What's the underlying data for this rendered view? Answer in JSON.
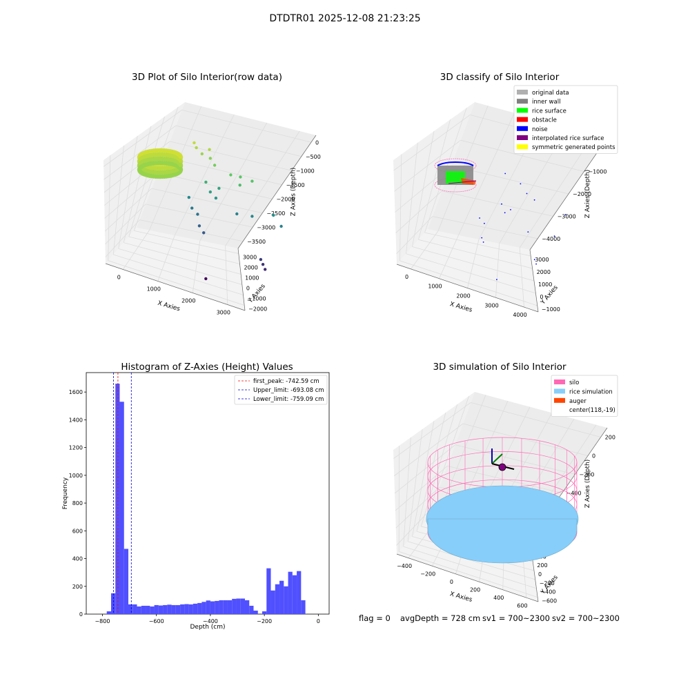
{
  "suptitle": "DTDTR01 2025-12-08 21:23:25",
  "footer": {
    "flag": "flag = 0",
    "avg_depth": "avgDepth = 728 cm",
    "sv1": "sv1 = 700~2300",
    "sv2": "sv2 = 700~2300"
  },
  "colors": {
    "histogram_bar": "#5050ff",
    "first_peak_line": "#ff0000",
    "limit_lines": "#0000cc",
    "silo_wire": "#ff69b4",
    "rice_simulation": "#87cefa",
    "auger": "#ff4500",
    "center_marker": "#800080",
    "original_data": "#b0b0b0",
    "inner_wall": "#808080",
    "rice_surface": "#00ff00",
    "obstacle": "#ff0000",
    "noise": "#0000ff",
    "interpolated_rice_surface": "#800080",
    "symmetric_generated_points": "#ffff00",
    "grid": "#dcdcdc",
    "pane": "#f2f2f2"
  },
  "chart_data": [
    {
      "type": "scatter",
      "projection": "3d",
      "title": "3D Plot of Silo Interior(row data)",
      "xlabel": "X Axies",
      "ylabel": "Y Axies",
      "zlabel": "Z Axies (Depth)",
      "x_ticks": [
        "0",
        "1000",
        "2000",
        "3000"
      ],
      "y_ticks": [
        "−2000",
        "−1000",
        "0",
        "1000",
        "2000",
        "3000"
      ],
      "z_ticks": [
        "0",
        "−500",
        "−1000",
        "−1500",
        "−2000",
        "−2500",
        "−3000",
        "−3500"
      ],
      "colormap": "viridis (by depth)",
      "points": [
        {
          "x": 200,
          "y": 2400,
          "z": -800
        },
        {
          "x": 300,
          "y": 2300,
          "z": -900
        },
        {
          "x": 500,
          "y": 2200,
          "z": -1000
        },
        {
          "x": 600,
          "y": 2500,
          "z": -900
        },
        {
          "x": 700,
          "y": 2300,
          "z": -1100
        },
        {
          "x": 900,
          "y": 2100,
          "z": -1200
        },
        {
          "x": 1400,
          "y": 2000,
          "z": -1300
        },
        {
          "x": 1600,
          "y": 2200,
          "z": -1350
        },
        {
          "x": 1700,
          "y": 1900,
          "z": -1500
        },
        {
          "x": 1900,
          "y": 2300,
          "z": -1400
        },
        {
          "x": 800,
          "y": 1700,
          "z": -1700
        },
        {
          "x": 1000,
          "y": 1500,
          "z": -1900
        },
        {
          "x": 1200,
          "y": 1400,
          "z": -2000
        },
        {
          "x": 1100,
          "y": 1900,
          "z": -1850
        },
        {
          "x": 500,
          "y": 1200,
          "z": -2200
        },
        {
          "x": 700,
          "y": 900,
          "z": -2400
        },
        {
          "x": 900,
          "y": 800,
          "z": -2500
        },
        {
          "x": 1800,
          "y": 1400,
          "z": -2300
        },
        {
          "x": 2200,
          "y": 1500,
          "z": -2250
        },
        {
          "x": 2700,
          "y": 1800,
          "z": -2100
        },
        {
          "x": 3000,
          "y": 1600,
          "z": -2300
        },
        {
          "x": 1100,
          "y": 400,
          "z": -2700
        },
        {
          "x": 1300,
          "y": 200,
          "z": -2800
        },
        {
          "x": 2900,
          "y": 300,
          "z": -3100
        },
        {
          "x": 3000,
          "y": 200,
          "z": -3200
        },
        {
          "x": 3100,
          "y": 100,
          "z": -3300
        },
        {
          "x": 2000,
          "y": -1500,
          "z": -3600
        }
      ],
      "ring_points": {
        "x_center": 300,
        "y_center": 2500,
        "z_top": -500,
        "z_bottom": -1000,
        "radius": 500
      }
    },
    {
      "type": "scatter",
      "projection": "3d",
      "title": "3D classify of Silo Interior",
      "xlabel": "X Axies",
      "ylabel": "Y Axies",
      "zlabel": "Z Axies (Depth)",
      "x_ticks": [
        "0",
        "1000",
        "2000",
        "3000",
        "4000"
      ],
      "y_ticks": [
        "−1000",
        "0",
        "1000",
        "2000",
        "3000"
      ],
      "z_ticks": [
        "0",
        "−1000",
        "−2000",
        "−3000",
        "−4000"
      ],
      "legend_position": "top-right",
      "legend": [
        {
          "label": "original data",
          "color": "#b0b0b0"
        },
        {
          "label": "inner wall",
          "color": "#808080"
        },
        {
          "label": "rice surface",
          "color": "#00ff00"
        },
        {
          "label": "obstacle",
          "color": "#ff0000"
        },
        {
          "label": "noise",
          "color": "#0000ff"
        },
        {
          "label": "interpolated rice surface",
          "color": "#800080"
        },
        {
          "label": "symmetric generated points",
          "color": "#ffff00"
        }
      ],
      "noise_points": [
        {
          "x": 1500,
          "y": 2000,
          "z": -900
        },
        {
          "x": 2100,
          "y": 1800,
          "z": -1000
        },
        {
          "x": 2400,
          "y": 1600,
          "z": -1200
        },
        {
          "x": 2700,
          "y": 1500,
          "z": -1300
        },
        {
          "x": 3600,
          "y": 1800,
          "z": -1600
        },
        {
          "x": 1700,
          "y": 1300,
          "z": -1800
        },
        {
          "x": 1900,
          "y": 1100,
          "z": -2000
        },
        {
          "x": 2000,
          "y": 1300,
          "z": -1900
        },
        {
          "x": 3500,
          "y": 1200,
          "z": -2300
        },
        {
          "x": 2900,
          "y": 600,
          "z": -2200
        },
        {
          "x": 1200,
          "y": 800,
          "z": -2400
        },
        {
          "x": 1400,
          "y": 700,
          "z": -2500
        },
        {
          "x": 3300,
          "y": 200,
          "z": -3000
        },
        {
          "x": 3400,
          "y": 100,
          "z": -3100
        },
        {
          "x": 1500,
          "y": 300,
          "z": -2900
        },
        {
          "x": 1600,
          "y": 200,
          "z": -3000
        },
        {
          "x": 2500,
          "y": -800,
          "z": -3800
        }
      ]
    },
    {
      "type": "bar",
      "title": "Histogram of Z-Axies (Height) Values",
      "xlabel": "Depth (cm)",
      "ylabel": "Frequency",
      "xlim": [
        -860,
        40
      ],
      "ylim": [
        0,
        1740
      ],
      "x_ticks": [
        -800,
        -600,
        -400,
        -200,
        0
      ],
      "x_tick_labels": [
        "−800",
        "−600",
        "−400",
        "−200",
        "0"
      ],
      "y_ticks": [
        0,
        200,
        400,
        600,
        800,
        1000,
        1200,
        1400,
        1600
      ],
      "bin_width": 16,
      "bins_start": [
        -784,
        -768,
        -752,
        -736,
        -720,
        -704,
        -688,
        -672,
        -656,
        -640,
        -624,
        -608,
        -592,
        -576,
        -560,
        -544,
        -528,
        -512,
        -496,
        -480,
        -464,
        -448,
        -432,
        -416,
        -400,
        -384,
        -368,
        -352,
        -336,
        -320,
        -304,
        -288,
        -272,
        -256,
        -240,
        -224,
        -208,
        -192,
        -176,
        -160,
        -144,
        -128,
        -112,
        -96,
        -80,
        -64,
        -48,
        -32,
        -16
      ],
      "values": [
        20,
        150,
        1660,
        1530,
        470,
        70,
        70,
        55,
        60,
        60,
        55,
        65,
        62,
        65,
        68,
        65,
        65,
        70,
        72,
        70,
        75,
        80,
        88,
        98,
        92,
        95,
        100,
        100,
        100,
        110,
        112,
        112,
        100,
        60,
        25,
        0,
        20,
        330,
        170,
        215,
        240,
        200,
        305,
        280,
        310,
        100,
        0,
        0,
        0
      ],
      "vlines": [
        {
          "name": "first_peak: -742.59 cm",
          "x": -742.59,
          "color": "#ff0000"
        },
        {
          "name": "Upper_limit: -693.08 cm",
          "x": -693.08,
          "color": "#0000cc"
        },
        {
          "name": "Lower_limit: -759.09 cm",
          "x": -759.09,
          "color": "#0000cc"
        }
      ],
      "legend_position": "top-right"
    },
    {
      "type": "scatter",
      "projection": "3d",
      "title": "3D simulation of Silo Interior",
      "xlabel": "X Axies",
      "ylabel": "Y Axies",
      "zlabel": "Z Axies (Depth)",
      "x_ticks": [
        "−400",
        "−200",
        "0",
        "200",
        "400",
        "600"
      ],
      "y_ticks": [
        "−600",
        "−400",
        "−200",
        "0",
        "200",
        "400",
        "600"
      ],
      "z_ticks": [
        "200",
        "0",
        "−200",
        "−400",
        "−600",
        "−800"
      ],
      "legend_position": "top-right",
      "legend": [
        {
          "label": "silo",
          "color": "#ff69b4"
        },
        {
          "label": "rice simulation",
          "color": "#87cefa"
        },
        {
          "label": "auger",
          "color": "#ff4500"
        },
        {
          "label": "center(118,-19)",
          "color": ""
        }
      ]
    }
  ]
}
